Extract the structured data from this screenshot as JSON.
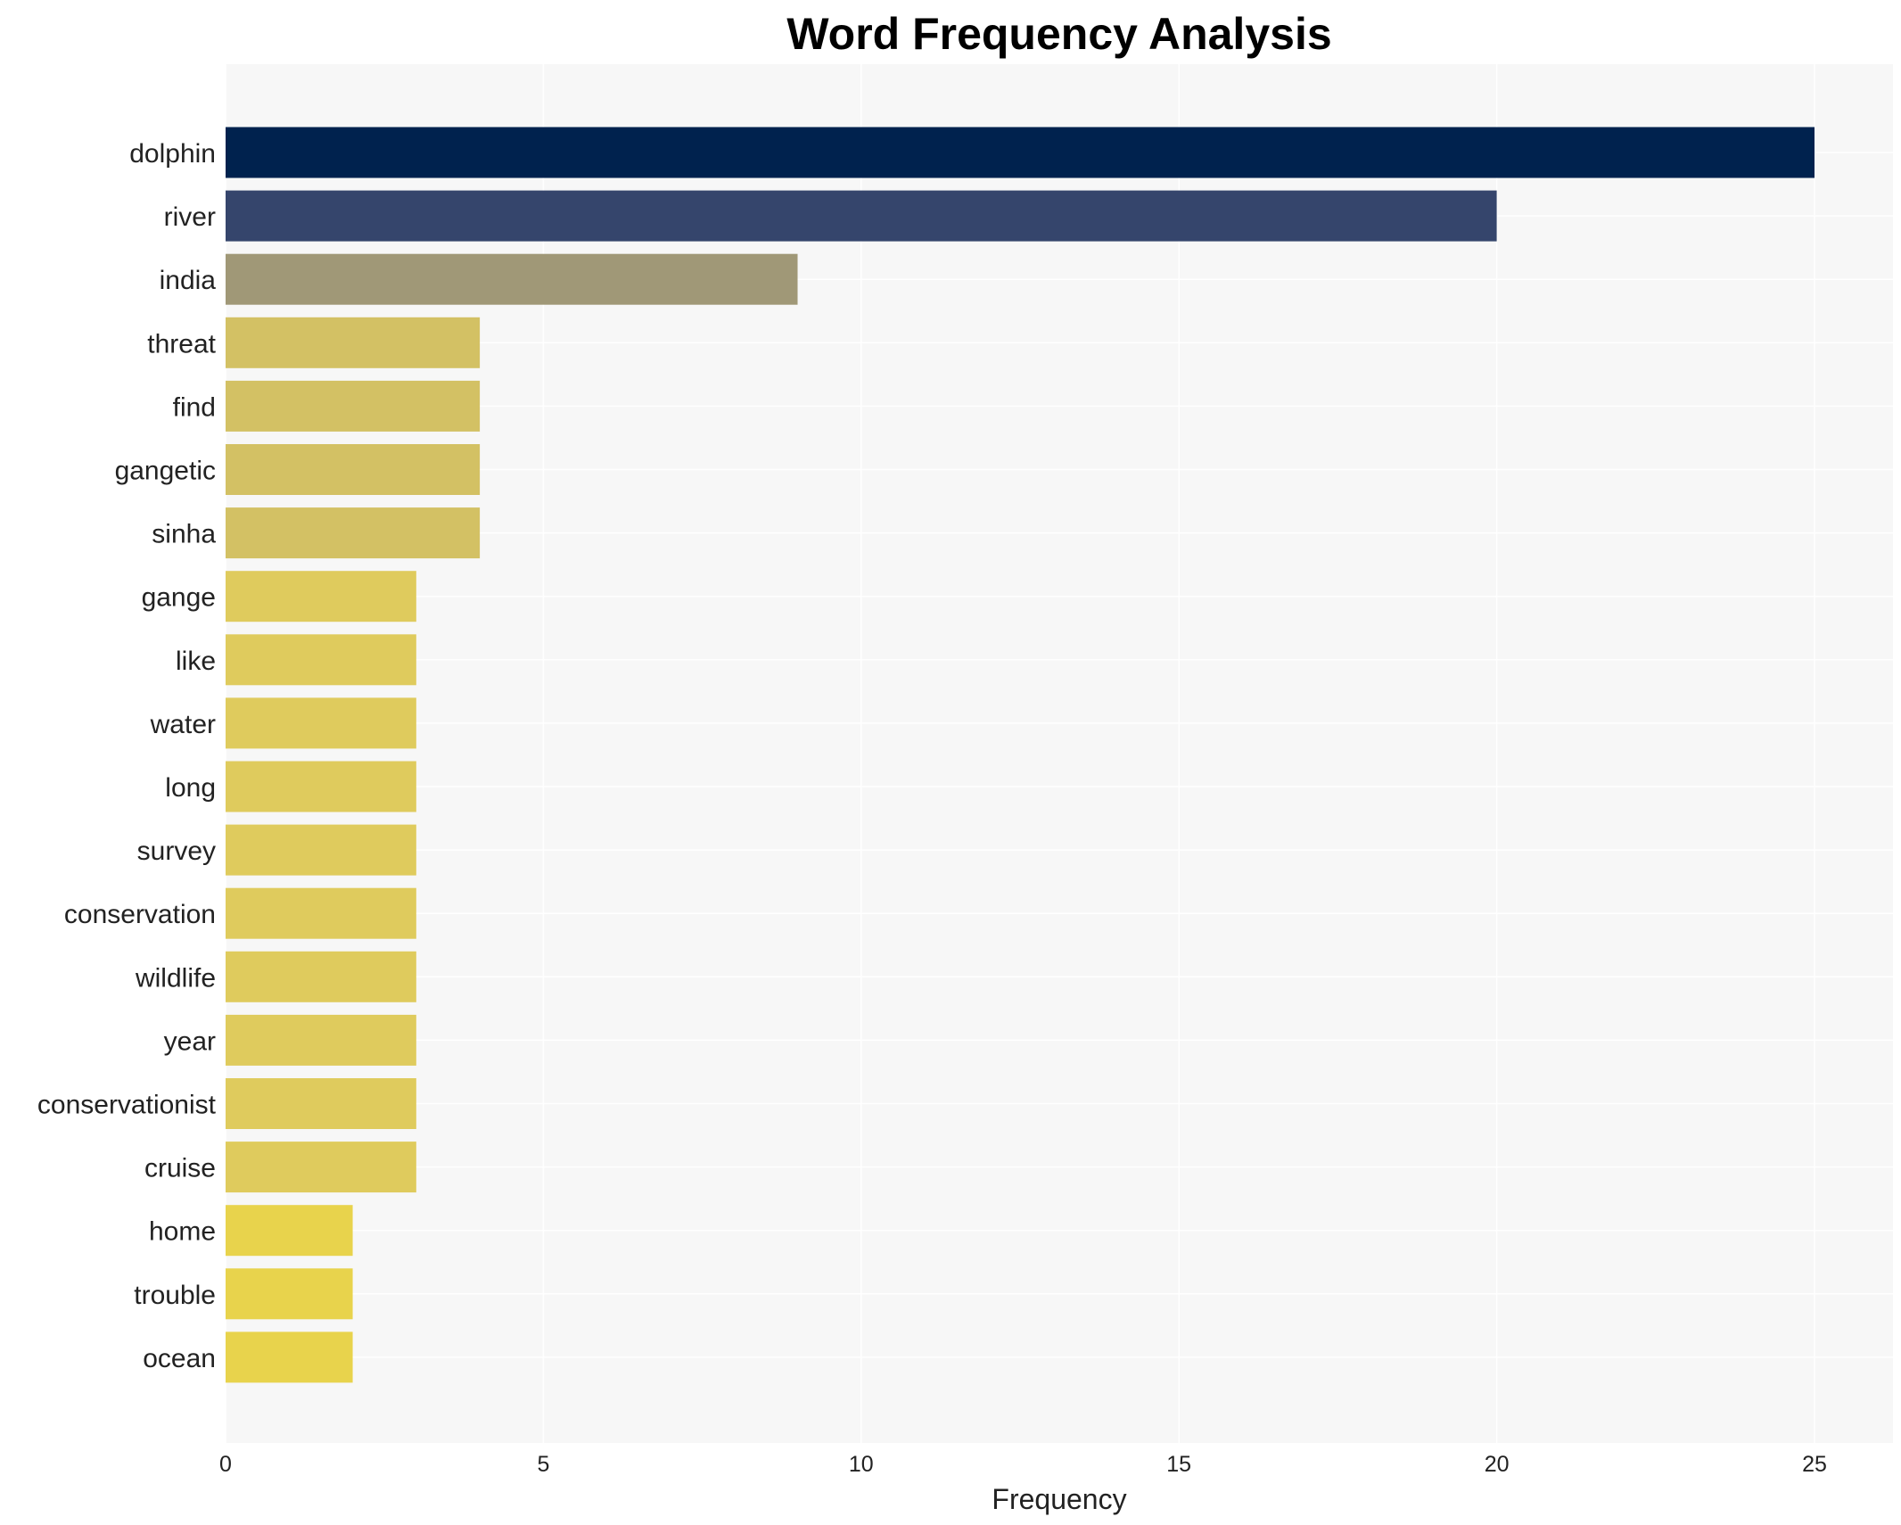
{
  "chart_data": {
    "type": "bar",
    "orientation": "horizontal",
    "title": "Word Frequency Analysis",
    "xlabel": "Frequency",
    "ylabel": "",
    "xlim": [
      0,
      25
    ],
    "xticks": [
      "0",
      "5",
      "10",
      "15",
      "20",
      "25"
    ],
    "grid": true,
    "categories": [
      "dolphin",
      "river",
      "india",
      "threat",
      "find",
      "gangetic",
      "sinha",
      "gange",
      "like",
      "water",
      "long",
      "survey",
      "conservation",
      "wildlife",
      "year",
      "conservationist",
      "cruise",
      "home",
      "trouble",
      "ocean"
    ],
    "values": [
      25,
      20,
      9,
      4,
      4,
      4,
      4,
      3,
      3,
      3,
      3,
      3,
      3,
      3,
      3,
      3,
      3,
      2,
      2,
      2
    ],
    "colors": [
      "#00224e",
      "#35456c",
      "#a09877",
      "#d3c164",
      "#d3c164",
      "#d3c164",
      "#d3c164",
      "#dfcb5d",
      "#dfcb5d",
      "#dfcb5d",
      "#dfcb5d",
      "#dfcb5d",
      "#dfcb5d",
      "#dfcb5d",
      "#dfcb5d",
      "#dfcb5d",
      "#dfcb5d",
      "#e8d34c",
      "#e8d34c",
      "#e8d34c"
    ],
    "background": "#f7f7f7",
    "gridColor": "#ffffff"
  }
}
